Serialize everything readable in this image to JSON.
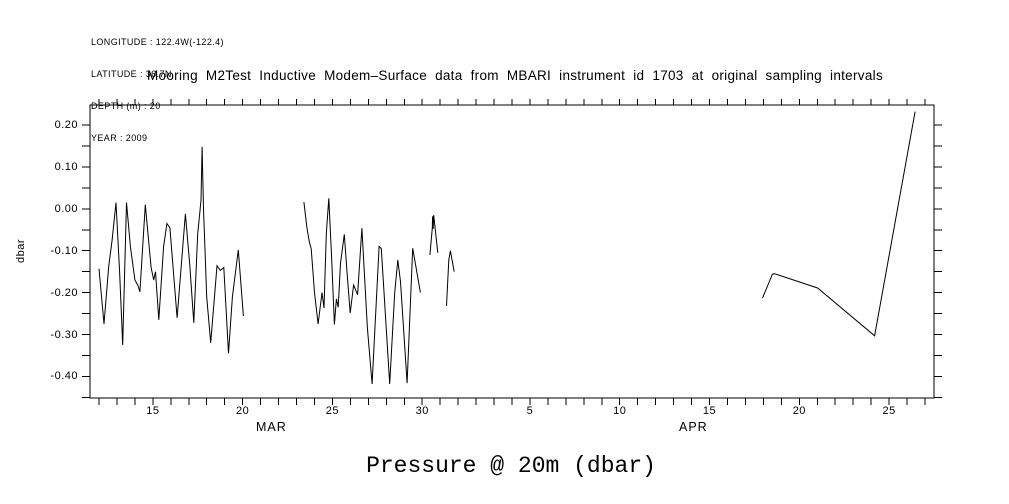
{
  "meta_block": {
    "lines": [
      "LONGITUDE : 122.4W(-122.4)",
      "LATITUDE : 36.7N",
      "DEPTH (m) : 20",
      "YEAR : 2009"
    ]
  },
  "header": {
    "title": "Mooring M2Test Inductive Modem–Surface data from MBARI instrument id 1703 at original sampling intervals"
  },
  "footer": {
    "title": "Pressure @ 20m (dbar)"
  },
  "chart_data": {
    "type": "line",
    "title": "Pressure @ 20m (dbar)",
    "subtitle": "Mooring M2Test Inductive Modem–Surface data from MBARI instrument id 1703 at original sampling intervals",
    "ylabel": "dbar",
    "line_color": "#000000",
    "background_color": "#ffffff",
    "grid": false,
    "legend": "none",
    "month_labels": [
      {
        "label": "MAR",
        "center_day": 21.6
      },
      {
        "label": "APR",
        "center_day": 45.1
      }
    ],
    "x_axis": {
      "unit": "calendar day, March 2009 day number (April days continue as 31+d)",
      "domain": {
        "start": 11.5,
        "end": 58.5
      },
      "major_ticks": [
        {
          "label": "15",
          "day": 15
        },
        {
          "label": "20",
          "day": 20
        },
        {
          "label": "25",
          "day": 25
        },
        {
          "label": "30",
          "day": 30
        },
        {
          "label": "5",
          "day": 36
        },
        {
          "label": "10",
          "day": 41
        },
        {
          "label": "15",
          "day": 46
        },
        {
          "label": "20",
          "day": 51
        },
        {
          "label": "25",
          "day": 56
        }
      ],
      "minor_ticks": {
        "start": 12,
        "end": 58,
        "step": 1
      }
    },
    "y_axis": {
      "unit": "dbar",
      "domain": {
        "min": -0.4515,
        "max": 0.2477
      },
      "major_ticks": [
        {
          "label": "0.20",
          "value": 0.2
        },
        {
          "label": "0.10",
          "value": 0.1
        },
        {
          "label": "0.00",
          "value": 0.0
        },
        {
          "label": "-0.10",
          "value": -0.1
        },
        {
          "label": "-0.20",
          "value": -0.2
        },
        {
          "label": "-0.30",
          "value": -0.3
        },
        {
          "label": "-0.40",
          "value": -0.4
        }
      ],
      "minor_ticks": {
        "start": -0.45,
        "end": 0.2,
        "step": 0.05
      }
    },
    "series": [
      {
        "name": "pressure_dbar",
        "color": "#000000",
        "segments": [
          [
            [
              12.0,
              -0.143
            ],
            [
              12.28,
              -0.275
            ],
            [
              12.54,
              -0.138
            ],
            [
              12.73,
              -0.075
            ],
            [
              12.95,
              0.015
            ],
            [
              13.15,
              -0.15
            ],
            [
              13.32,
              -0.325
            ],
            [
              13.53,
              0.015
            ],
            [
              13.75,
              -0.09
            ],
            [
              14.0,
              -0.17
            ],
            [
              14.16,
              -0.182
            ],
            [
              14.28,
              -0.198
            ],
            [
              14.58,
              0.01
            ],
            [
              14.9,
              -0.14
            ],
            [
              15.05,
              -0.17
            ],
            [
              15.15,
              -0.15
            ],
            [
              15.33,
              -0.265
            ],
            [
              15.6,
              -0.09
            ],
            [
              15.78,
              -0.035
            ],
            [
              15.95,
              -0.045
            ],
            [
              16.35,
              -0.26
            ],
            [
              16.81,
              -0.012
            ],
            [
              17.06,
              -0.135
            ],
            [
              17.28,
              -0.272
            ],
            [
              17.5,
              -0.06
            ],
            [
              17.68,
              0.02
            ],
            [
              17.74,
              0.148
            ],
            [
              17.82,
              0.0
            ],
            [
              18.0,
              -0.21
            ],
            [
              18.22,
              -0.32
            ],
            [
              18.57,
              -0.136
            ],
            [
              18.76,
              -0.147
            ],
            [
              18.95,
              -0.14
            ],
            [
              19.21,
              -0.345
            ],
            [
              19.43,
              -0.21
            ],
            [
              19.76,
              -0.098
            ],
            [
              20.04,
              -0.256
            ]
          ],
          [
            [
              23.41,
              0.016
            ],
            [
              23.58,
              -0.045
            ],
            [
              23.72,
              -0.08
            ],
            [
              23.82,
              -0.095
            ],
            [
              24.0,
              -0.2
            ],
            [
              24.2,
              -0.275
            ],
            [
              24.42,
              -0.2
            ],
            [
              24.53,
              -0.237
            ],
            [
              24.66,
              -0.06
            ],
            [
              24.8,
              0.025
            ],
            [
              24.95,
              -0.11
            ],
            [
              25.11,
              -0.276
            ],
            [
              25.22,
              -0.215
            ],
            [
              25.32,
              -0.235
            ],
            [
              25.45,
              -0.13
            ],
            [
              25.66,
              -0.061
            ],
            [
              25.81,
              -0.15
            ],
            [
              25.99,
              -0.249
            ],
            [
              26.18,
              -0.182
            ],
            [
              26.4,
              -0.205
            ],
            [
              26.64,
              -0.046
            ],
            [
              26.95,
              -0.285
            ],
            [
              27.21,
              -0.418
            ],
            [
              27.6,
              -0.09
            ],
            [
              27.72,
              -0.095
            ],
            [
              28.19,
              -0.418
            ],
            [
              28.47,
              -0.2
            ],
            [
              28.64,
              -0.122
            ],
            [
              28.79,
              -0.174
            ],
            [
              29.16,
              -0.416
            ],
            [
              29.47,
              -0.094
            ],
            [
              29.9,
              -0.2
            ]
          ],
          [
            [
              30.43,
              -0.11
            ],
            [
              30.56,
              -0.046
            ],
            [
              30.58,
              -0.018
            ],
            [
              30.61,
              -0.048
            ],
            [
              30.64,
              -0.015
            ],
            [
              30.87,
              -0.105
            ]
          ],
          [
            [
              31.35,
              -0.232
            ],
            [
              31.48,
              -0.122
            ],
            [
              31.57,
              -0.1
            ],
            [
              31.78,
              -0.15
            ]
          ],
          [
            [
              48.95,
              -0.213
            ],
            [
              49.5,
              -0.156
            ],
            [
              49.63,
              -0.155
            ],
            [
              52.02,
              -0.189
            ],
            [
              55.19,
              -0.303
            ],
            [
              57.45,
              0.232
            ]
          ]
        ]
      }
    ]
  }
}
